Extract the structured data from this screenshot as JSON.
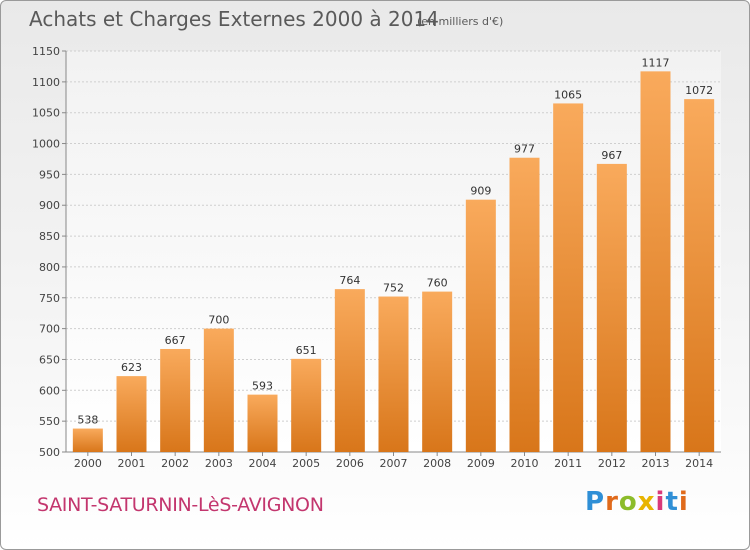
{
  "header": {
    "title": "Achats et Charges Externes 2000 à 2014",
    "subtitle": "(en milliers d'€)"
  },
  "footer": {
    "town": "SAINT-SATURNIN-LèS-AVIGNON",
    "logo": "Proxiti"
  },
  "colors": {
    "bar_light": "#f7a65a",
    "bar_dark": "#d9781c",
    "grid": "#cfcfcf",
    "town": "#c3366e"
  },
  "chart_data": {
    "type": "bar",
    "title": "Achats et Charges Externes 2000 à 2014",
    "subtitle": "(en milliers d'€)",
    "categories": [
      "2000",
      "2001",
      "2002",
      "2003",
      "2004",
      "2005",
      "2006",
      "2007",
      "2008",
      "2009",
      "2010",
      "2011",
      "2012",
      "2013",
      "2014"
    ],
    "values": [
      538,
      623,
      667,
      700,
      593,
      651,
      764,
      752,
      760,
      909,
      977,
      1065,
      967,
      1117,
      1072
    ],
    "ylim": [
      500,
      1150
    ],
    "yticks": [
      500,
      550,
      600,
      650,
      700,
      750,
      800,
      850,
      900,
      950,
      1000,
      1050,
      1100,
      1150
    ],
    "grid": true,
    "data_labels": true
  }
}
